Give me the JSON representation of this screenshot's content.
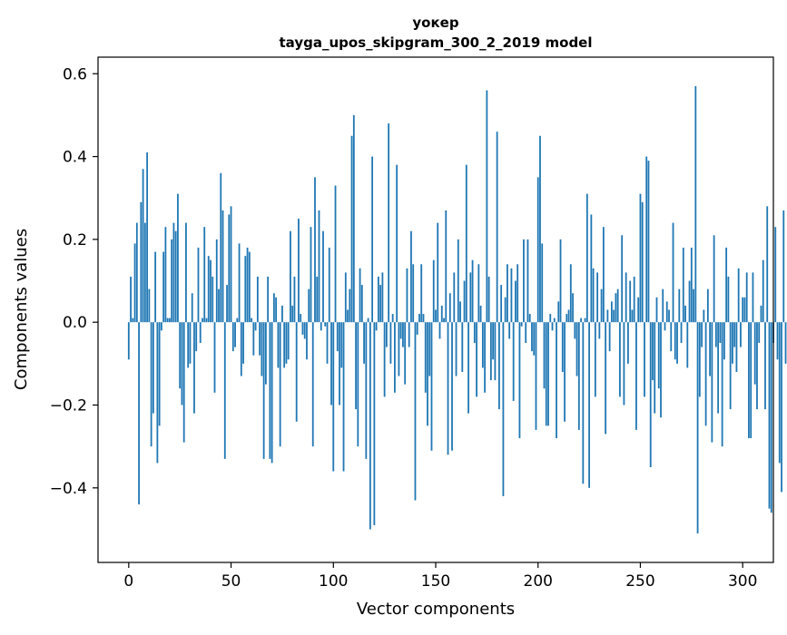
{
  "chart_data": {
    "type": "bar",
    "title": "уокер",
    "subtitle": "tayga_upos_skipgram_300_2_2019 model",
    "xlabel": "Vector components",
    "ylabel": "Components values",
    "xlim": [
      -15,
      315
    ],
    "ylim": [
      -0.58,
      0.64
    ],
    "xticks": [
      0,
      50,
      100,
      150,
      200,
      250,
      300
    ],
    "xtick_labels": [
      "0",
      "50",
      "100",
      "150",
      "200",
      "250",
      "300"
    ],
    "yticks": [
      -0.4,
      -0.2,
      0.0,
      0.2,
      0.4,
      0.6
    ],
    "ytick_labels": [
      "−0.4",
      "−0.2",
      "0.0",
      "0.2",
      "0.4",
      "0.6"
    ],
    "grid": false,
    "bar_color": "#1f77b4",
    "series": [
      {
        "values": [
          -0.09,
          0.11,
          0.01,
          0.19,
          0.24,
          -0.44,
          0.29,
          0.37,
          0.24,
          0.41,
          0.08,
          -0.3,
          -0.22,
          0.17,
          -0.34,
          -0.25,
          -0.02,
          0.17,
          0.23,
          0.01,
          0.01,
          0.2,
          0.24,
          0.22,
          0.31,
          -0.16,
          -0.2,
          -0.29,
          0.24,
          -0.11,
          -0.1,
          0.07,
          -0.22,
          -0.07,
          0.18,
          -0.05,
          0.01,
          0.23,
          0.01,
          0.16,
          0.15,
          0.11,
          -0.17,
          0.2,
          0.08,
          0.36,
          0.27,
          -0.33,
          0.09,
          0.26,
          0.28,
          -0.07,
          -0.06,
          0.01,
          0.19,
          -0.13,
          -0.1,
          0.16,
          0.18,
          0.17,
          0.01,
          -0.08,
          -0.02,
          0.11,
          -0.08,
          -0.13,
          -0.33,
          -0.15,
          0.11,
          -0.33,
          -0.34,
          0.07,
          0.06,
          -0.11,
          -0.3,
          0.04,
          -0.11,
          -0.1,
          -0.09,
          0.22,
          0.04,
          0.11,
          -0.24,
          0.25,
          0.02,
          -0.03,
          -0.04,
          -0.09,
          0.08,
          0.23,
          -0.3,
          0.35,
          0.11,
          0.27,
          -0.02,
          0.22,
          -0.01,
          -0.1,
          0.18,
          -0.2,
          -0.36,
          0.33,
          -0.07,
          -0.2,
          -0.11,
          -0.36,
          0.12,
          0.03,
          0.08,
          0.45,
          0.5,
          -0.21,
          -0.3,
          0.13,
          0.09,
          -0.1,
          -0.33,
          0.01,
          -0.5,
          0.4,
          -0.49,
          -0.02,
          0.11,
          0.09,
          0.12,
          -0.18,
          -0.06,
          0.48,
          -0.1,
          0.02,
          -0.17,
          0.38,
          -0.13,
          -0.04,
          -0.06,
          -0.15,
          0.13,
          -0.06,
          0.22,
          0.14,
          -0.43,
          -0.03,
          0.02,
          0.14,
          0.02,
          -0.17,
          -0.25,
          -0.13,
          -0.31,
          0.15,
          0.03,
          0.24,
          -0.04,
          0.04,
          0.01,
          0.27,
          -0.32,
          0.07,
          -0.31,
          0.12,
          -0.13,
          0.2,
          0.05,
          -0.12,
          0.1,
          0.38,
          -0.22,
          0.12,
          0.15,
          -0.05,
          -0.18,
          0.14,
          0.04,
          -0.11,
          -0.17,
          0.56,
          0.11,
          -0.14,
          -0.09,
          -0.14,
          0.46,
          -0.21,
          0.09,
          -0.42,
          0.06,
          0.14,
          -0.04,
          0.13,
          -0.19,
          0.1,
          0.14,
          -0.28,
          -0.01,
          0.2,
          -0.05,
          0.2,
          0.02,
          -0.07,
          -0.08,
          -0.26,
          0.35,
          0.45,
          0.19,
          -0.16,
          -0.25,
          -0.25,
          0.02,
          -0.02,
          0.01,
          -0.28,
          0.05,
          0.2,
          -0.12,
          -0.24,
          0.02,
          0.03,
          0.14,
          0.07,
          -0.04,
          -0.13,
          -0.26,
          0.01,
          -0.39,
          0.01,
          0.31,
          -0.4,
          0.26,
          0.13,
          -0.18,
          0.12,
          -0.04,
          0.08,
          0.23,
          -0.27,
          0.03,
          -0.07,
          0.05,
          0.03,
          0.07,
          0.08,
          -0.18,
          0.21,
          -0.2,
          0.12,
          -0.1,
          0.1,
          0.03,
          0.11,
          -0.26,
          0.06,
          0.31,
          0.29,
          -0.18,
          0.4,
          0.39,
          -0.35,
          -0.14,
          -0.22,
          0.06,
          -0.16,
          -0.23,
          0.08,
          -0.02,
          0.05,
          0.03,
          -0.07,
          0.24,
          -0.09,
          -0.1,
          0.08,
          -0.05,
          0.18,
          0.04,
          -0.11,
          0.1,
          0.18,
          0.08,
          0.57,
          -0.51,
          -0.18,
          -0.06,
          0.03,
          -0.25,
          0.08,
          -0.13,
          -0.29,
          0.21,
          -0.06,
          -0.22,
          -0.05,
          -0.3,
          -0.09,
          0.18,
          0.11,
          -0.21,
          -0.1,
          -0.06,
          -0.12,
          0.13,
          -0.06,
          0.06,
          0.06,
          0.12,
          -0.28,
          -0.28,
          0.12,
          -0.15,
          -0.21,
          -0.05,
          0.04,
          0.15,
          -0.21,
          0.28,
          -0.45,
          -0.46,
          -0.05,
          0.23,
          -0.09,
          -0.34,
          -0.41,
          0.27,
          -0.1
        ]
      }
    ]
  }
}
